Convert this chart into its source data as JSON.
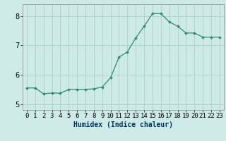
{
  "x": [
    0,
    1,
    2,
    3,
    4,
    5,
    6,
    7,
    8,
    9,
    10,
    11,
    12,
    13,
    14,
    15,
    16,
    17,
    18,
    19,
    20,
    21,
    22,
    23
  ],
  "y": [
    5.55,
    5.55,
    5.35,
    5.38,
    5.37,
    5.5,
    5.5,
    5.5,
    5.52,
    5.58,
    5.9,
    6.6,
    6.78,
    7.25,
    7.65,
    8.08,
    8.08,
    7.8,
    7.65,
    7.42,
    7.42,
    7.28,
    7.28,
    7.28
  ],
  "line_color": "#2e8b74",
  "marker_color": "#2e8b74",
  "bg_color": "#cdeae6",
  "grid_color": "#aed4cf",
  "xlabel": "Humidex (Indice chaleur)",
  "ylim": [
    4.8,
    8.4
  ],
  "xlim": [
    -0.5,
    23.5
  ],
  "yticks": [
    5,
    6,
    7,
    8
  ],
  "xticks": [
    0,
    1,
    2,
    3,
    4,
    5,
    6,
    7,
    8,
    9,
    10,
    11,
    12,
    13,
    14,
    15,
    16,
    17,
    18,
    19,
    20,
    21,
    22,
    23
  ],
  "label_fontsize": 7,
  "tick_fontsize": 6.5
}
